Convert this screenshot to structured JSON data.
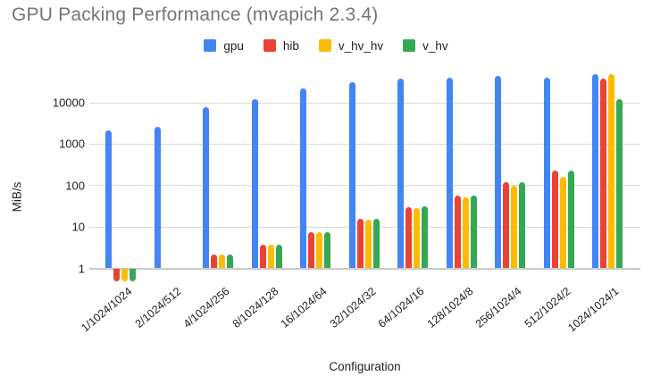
{
  "chart_data": {
    "type": "bar",
    "title": "GPU Packing Performance (mvapich 2.3.4)",
    "xlabel": "Configuration",
    "ylabel": "MiB/s",
    "y_scale": "log",
    "grid": true,
    "legend_position": "top",
    "y_ticks": [
      1,
      10,
      100,
      1000,
      10000
    ],
    "ylim": [
      0.45,
      60000
    ],
    "categories": [
      "1/1024/1024",
      "2/1024/512",
      "4/1024/256",
      "8/1024/128",
      "16/1024/64",
      "32/1024/32",
      "64/1024/16",
      "128/1024/8",
      "256/1024/4",
      "512/1024/2",
      "1024/1024/1"
    ],
    "series": [
      {
        "name": "gpu",
        "color": "#4285F4",
        "values": [
          2200,
          2600,
          8000,
          12500,
          22000,
          32000,
          38500,
          41000,
          45500,
          41000,
          50000
        ]
      },
      {
        "name": "hib",
        "color": "#EA4335",
        "values": [
          0.48,
          null,
          2.2,
          3.8,
          7.6,
          16,
          30,
          58,
          120,
          235,
          39000
        ]
      },
      {
        "name": "v_hv_hv",
        "color": "#FBBC04",
        "values": [
          0.48,
          null,
          2.2,
          3.8,
          7.4,
          15,
          28,
          52,
          100,
          165,
          50000
        ]
      },
      {
        "name": "v_hv",
        "color": "#34A853",
        "values": [
          0.48,
          null,
          2.2,
          3.8,
          7.6,
          16,
          31,
          58,
          120,
          225,
          12500
        ]
      }
    ],
    "colors": {
      "title_text": "#757575",
      "axis_text": "#222222",
      "gridline": "#dadada",
      "baseline": "#c9c9c9",
      "background": "#ffffff"
    }
  }
}
